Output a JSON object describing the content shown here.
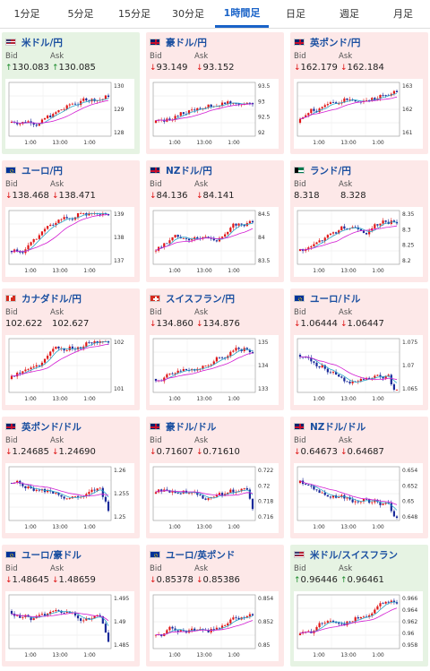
{
  "tabs": [
    {
      "label": "1分足",
      "active": false
    },
    {
      "label": "5分足",
      "active": false
    },
    {
      "label": "15分足",
      "active": false
    },
    {
      "label": "30分足",
      "active": false
    },
    {
      "label": "1時間足",
      "active": true
    },
    {
      "label": "日足",
      "active": false
    },
    {
      "label": "週足",
      "active": false
    },
    {
      "label": "月足",
      "active": false
    }
  ],
  "colors": {
    "up_bg": "#e6f3e3",
    "down_bg": "#fde8e8",
    "candle_up": "#e01818",
    "candle_down": "#1a2a9a",
    "ma1": "#2aa7c9",
    "ma2": "#d21bd2"
  },
  "bid_label": "Bid",
  "ask_label": "Ask",
  "cards": [
    {
      "pair": "米ドル/円",
      "flag": "us-flag",
      "dir": "up",
      "bid": "130.083",
      "ask": "130.085",
      "yticks": [
        "130",
        "129",
        "128"
      ],
      "xticks": [
        "1:00",
        "13:00",
        "1:00"
      ],
      "trend": "up"
    },
    {
      "pair": "豪ドル/円",
      "flag": "au-flag",
      "dir": "down",
      "bid": "93.149",
      "ask": "93.152",
      "yticks": [
        "93.5",
        "93",
        "92.5",
        "92"
      ],
      "xticks": [
        "1:00",
        "13:00",
        "1:00"
      ],
      "trend": "up"
    },
    {
      "pair": "英ポンド/円",
      "flag": "uk-flag",
      "dir": "down",
      "bid": "162.179",
      "ask": "162.184",
      "yticks": [
        "163",
        "162",
        "161"
      ],
      "xticks": [
        "1:00",
        "13:00",
        "1:00"
      ],
      "trend": "up"
    },
    {
      "pair": "ユーロ/円",
      "flag": "eu-flag",
      "dir": "down",
      "bid": "138.468",
      "ask": "138.471",
      "yticks": [
        "139",
        "138",
        "137"
      ],
      "xticks": [
        "1:00",
        "13:00",
        "1:00"
      ],
      "trend": "up"
    },
    {
      "pair": "NZドル/円",
      "flag": "nz-flag",
      "dir": "down",
      "bid": "84.136",
      "ask": "84.141",
      "yticks": [
        "84.5",
        "84",
        "83.5"
      ],
      "xticks": [
        "1:00",
        "13:00",
        "1:00"
      ],
      "trend": "up"
    },
    {
      "pair": "ランド/円",
      "flag": "za-flag",
      "dir": "none",
      "bid": "8.318",
      "ask": "8.328",
      "yticks": [
        "8.35",
        "8.3",
        "8.25",
        "8.2"
      ],
      "xticks": [
        "1:00",
        "13:00",
        "1:00"
      ],
      "trend": "up"
    },
    {
      "pair": "カナダドル/円",
      "flag": "ca-flag",
      "dir": "none",
      "bid": "102.622",
      "ask": "102.627",
      "yticks": [
        "102",
        "101"
      ],
      "xticks": [
        "1:00",
        "13:00",
        "1:00"
      ],
      "trend": "up"
    },
    {
      "pair": "スイスフラン/円",
      "flag": "ch-flag",
      "dir": "down",
      "bid": "134.860",
      "ask": "134.876",
      "yticks": [
        "135",
        "134",
        "133"
      ],
      "xticks": [
        "1:00",
        "13:00",
        "1:00"
      ],
      "trend": "up"
    },
    {
      "pair": "ユーロ/ドル",
      "flag": "eu-us-flag",
      "dir": "down",
      "bid": "1.06444",
      "ask": "1.06447",
      "yticks": [
        "1.075",
        "1.07",
        "1.065"
      ],
      "xticks": [
        "1:00",
        "13:00",
        "1:00"
      ],
      "trend": "down"
    },
    {
      "pair": "英ポンド/ドル",
      "flag": "uk-us-flag",
      "dir": "down",
      "bid": "1.24685",
      "ask": "1.24690",
      "yticks": [
        "1.26",
        "1.255",
        "1.25"
      ],
      "xticks": [
        "1:00",
        "13:00",
        "1:00"
      ],
      "trend": "down"
    },
    {
      "pair": "豪ドル/ドル",
      "flag": "au-us-flag",
      "dir": "down",
      "bid": "0.71607",
      "ask": "0.71610",
      "yticks": [
        "0.722",
        "0.72",
        "0.718",
        "0.716"
      ],
      "xticks": [
        "1:00",
        "13:00",
        "1:00"
      ],
      "trend": "flat"
    },
    {
      "pair": "NZドル/ドル",
      "flag": "nz-us-flag",
      "dir": "down",
      "bid": "0.64673",
      "ask": "0.64687",
      "yticks": [
        "0.654",
        "0.652",
        "0.65",
        "0.648"
      ],
      "xticks": [
        "1:00",
        "13:00",
        "1:00"
      ],
      "trend": "down"
    },
    {
      "pair": "ユーロ/豪ドル",
      "flag": "eu-au-flag",
      "dir": "down",
      "bid": "1.48645",
      "ask": "1.48659",
      "yticks": [
        "1.495",
        "1.49",
        "1.485"
      ],
      "xticks": [
        "1:00",
        "13:00",
        "1:00"
      ],
      "trend": "down"
    },
    {
      "pair": "ユーロ/英ポンド",
      "flag": "eu-uk-flag",
      "dir": "down",
      "bid": "0.85378",
      "ask": "0.85386",
      "yticks": [
        "0.854",
        "0.852",
        "0.85"
      ],
      "xticks": [
        "1:00",
        "13:00",
        "1:00"
      ],
      "trend": "up"
    },
    {
      "pair": "米ドル/スイスフラン",
      "flag": "us-ch-flag",
      "dir": "up",
      "bid": "0.96446",
      "ask": "0.96461",
      "yticks": [
        "0.966",
        "0.964",
        "0.962",
        "0.96",
        "0.958"
      ],
      "xticks": [
        "1:00",
        "13:00",
        "1:00"
      ],
      "trend": "up"
    }
  ]
}
